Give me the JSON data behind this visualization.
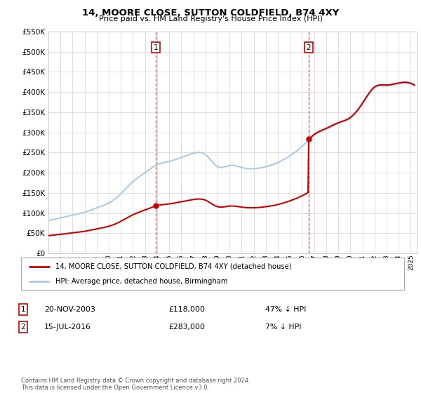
{
  "title": "14, MOORE CLOSE, SUTTON COLDFIELD, B74 4XY",
  "subtitle": "Price paid vs. HM Land Registry's House Price Index (HPI)",
  "legend_line1": "14, MOORE CLOSE, SUTTON COLDFIELD, B74 4XY (detached house)",
  "legend_line2": "HPI: Average price, detached house, Birmingham",
  "sale1_label": "1",
  "sale1_date": "20-NOV-2003",
  "sale1_price": "£118,000",
  "sale1_hpi": "47% ↓ HPI",
  "sale2_label": "2",
  "sale2_date": "15-JUL-2016",
  "sale2_price": "£283,000",
  "sale2_hpi": "7% ↓ HPI",
  "footer": "Contains HM Land Registry data © Crown copyright and database right 2024.\nThis data is licensed under the Open Government Licence v3.0.",
  "sale1_year": 2003.9,
  "sale1_value": 118000,
  "sale2_year": 2016.55,
  "sale2_value": 283000,
  "hpi_color": "#aacce8",
  "price_color": "#cc0000",
  "marker_color": "#cc0000",
  "vline_color": "#cc0000",
  "background_color": "#ffffff",
  "plot_bg_color": "#ffffff",
  "grid_color": "#dddddd",
  "ylim": [
    0,
    550000
  ],
  "xlim_start": 1995.0,
  "xlim_end": 2025.5
}
